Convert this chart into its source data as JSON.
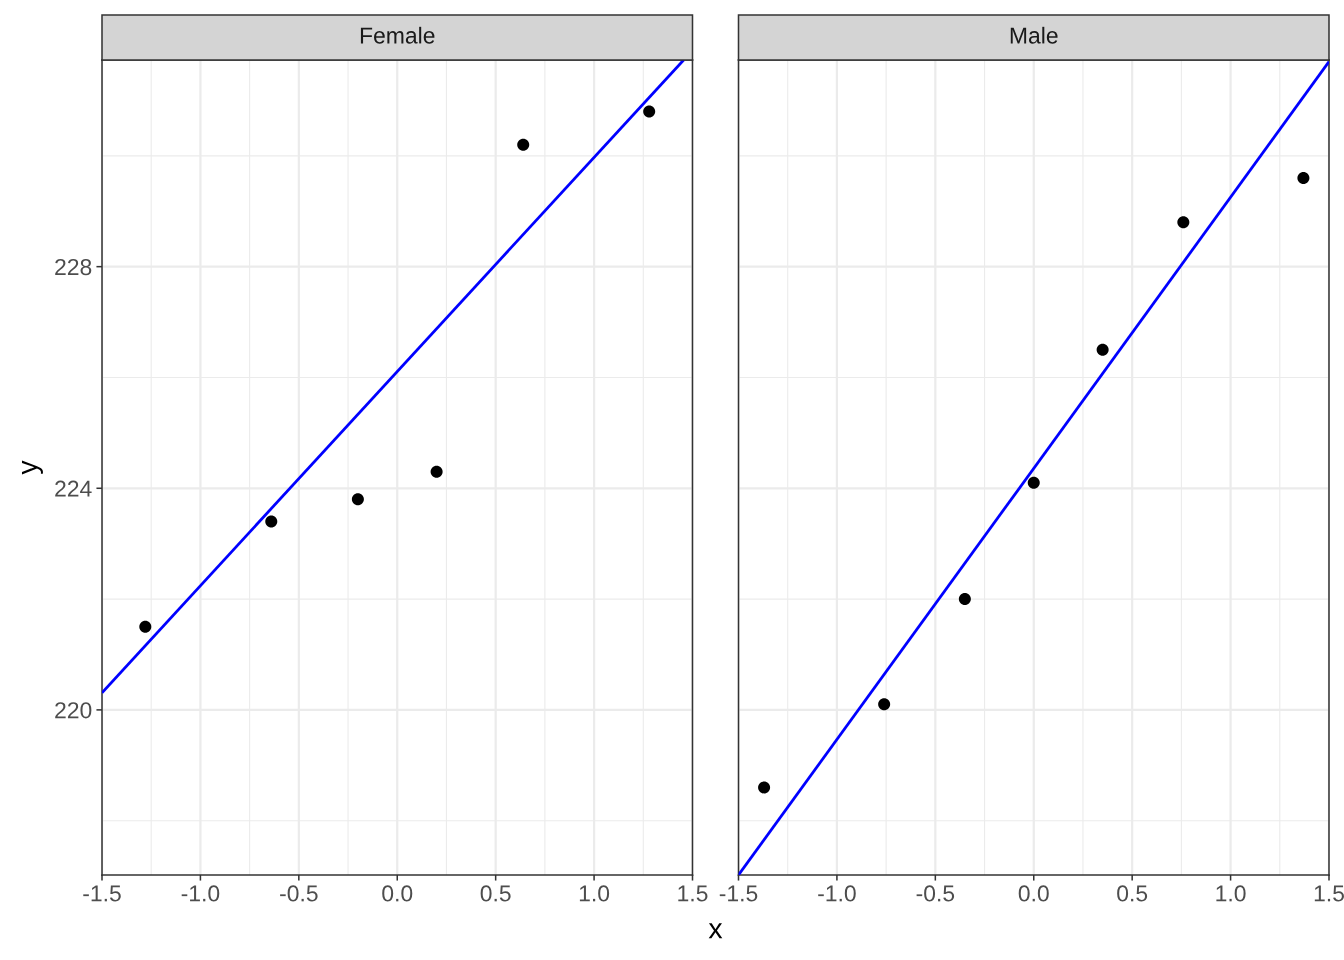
{
  "chart_data": [
    {
      "type": "scatter",
      "title": "Female",
      "xlabel": "x",
      "ylabel": "y",
      "xlim": [
        -1.5,
        1.5
      ],
      "xticks": [
        -1.5,
        {
          "value": -1,
          "label": "-1.0"
        },
        -0.5,
        {
          "value": 0,
          "label": "0.0"
        },
        0.5,
        {
          "value": 1,
          "label": "1.0"
        },
        1.5
      ],
      "ylim": [
        217.02,
        231.73
      ],
      "yticks": [
        220,
        224,
        228
      ],
      "grid": true,
      "marker": "circle",
      "series": [
        {
          "color": "#000000",
          "x": [
            -1.28,
            -0.64,
            -0.2,
            0.2,
            0.64,
            1.28
          ],
          "values": [
            221.5,
            223.4,
            223.8,
            224.3,
            230.2,
            230.8
          ]
        },
        {
          "type": "line",
          "marker": "none",
          "color": "#0000ff",
          "x": [
            -1.5,
            1.455
          ],
          "values": [
            220.31,
            231.73
          ]
        }
      ]
    },
    {
      "type": "scatter",
      "title": "Male",
      "xlim": [
        -1.5,
        1.5
      ],
      "xticks": [
        -1.5,
        {
          "value": -1,
          "label": "-1.0"
        },
        -0.5,
        {
          "value": 0,
          "label": "0.0"
        },
        0.5,
        {
          "value": 1,
          "label": "1.0"
        },
        1.5
      ],
      "ylim": [
        217.02,
        231.73
      ],
      "yticks": [
        220,
        224,
        228
      ],
      "grid": true,
      "tick_labels": "x",
      "marker": "circle",
      "series": [
        {
          "color": "#000000",
          "x": [
            -1.37,
            -0.76,
            -0.35,
            0.0,
            0.35,
            0.76,
            1.37
          ],
          "values": [
            218.6,
            220.1,
            222.0,
            224.1,
            226.5,
            228.8,
            229.6
          ]
        },
        {
          "type": "line",
          "marker": "none",
          "color": "#0000ff",
          "x": [
            -1.5,
            1.5
          ],
          "values": [
            217.02,
            231.7
          ]
        }
      ]
    }
  ]
}
